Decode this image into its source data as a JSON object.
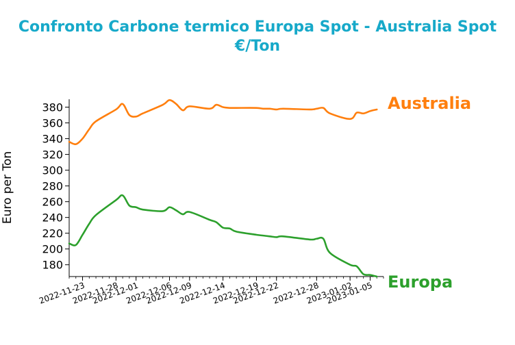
{
  "chart_data": {
    "type": "line",
    "title": "Confronto Carbone termico Europa Spot - Australia Spot",
    "subtitle": "€/Ton",
    "xlabel": "",
    "ylabel": "Euro per Ton",
    "xlim": [
      "2022-11-21",
      "2023-01-07"
    ],
    "ylim": [
      165,
      390
    ],
    "yticks": [
      180,
      200,
      220,
      240,
      260,
      280,
      300,
      320,
      340,
      360,
      380
    ],
    "xticks": [
      "2022-11-23",
      "2022-11-28",
      "2022-12-01",
      "2022-12-06",
      "2022-12-09",
      "2022-12-14",
      "2022-12-19",
      "2022-12-22",
      "2022-12-28",
      "2023-01-02",
      "2023-01-05"
    ],
    "grid": false,
    "legend": "none",
    "x": [
      "2022-11-21",
      "2022-11-22",
      "2022-11-23",
      "2022-11-24",
      "2022-11-25",
      "2022-11-28",
      "2022-11-29",
      "2022-11-30",
      "2022-12-01",
      "2022-12-02",
      "2022-12-05",
      "2022-12-06",
      "2022-12-07",
      "2022-12-08",
      "2022-12-09",
      "2022-12-12",
      "2022-12-13",
      "2022-12-14",
      "2022-12-15",
      "2022-12-16",
      "2022-12-19",
      "2022-12-20",
      "2022-12-21",
      "2022-12-22",
      "2022-12-23",
      "2022-12-27",
      "2022-12-28",
      "2022-12-29",
      "2022-12-30",
      "2023-01-02",
      "2023-01-03",
      "2023-01-04",
      "2023-01-05",
      "2023-01-06"
    ],
    "series": [
      {
        "name": "Australia",
        "color": "#ff7f0e",
        "values": [
          336,
          333,
          340,
          352,
          362,
          377,
          384,
          370,
          368,
          372,
          383,
          389,
          384,
          376,
          381,
          378,
          383,
          380,
          379,
          379,
          379,
          378,
          378,
          377,
          378,
          377,
          378,
          379,
          372,
          365,
          373,
          372,
          375,
          377
        ]
      },
      {
        "name": "Europa",
        "color": "#2ca02c",
        "values": [
          207,
          205,
          218,
          232,
          243,
          262,
          268,
          255,
          253,
          250,
          248,
          253,
          249,
          244,
          247,
          237,
          234,
          227,
          226,
          222,
          218,
          217,
          216,
          215,
          216,
          212,
          213,
          213,
          195,
          180,
          178,
          168,
          167,
          165
        ]
      }
    ]
  }
}
